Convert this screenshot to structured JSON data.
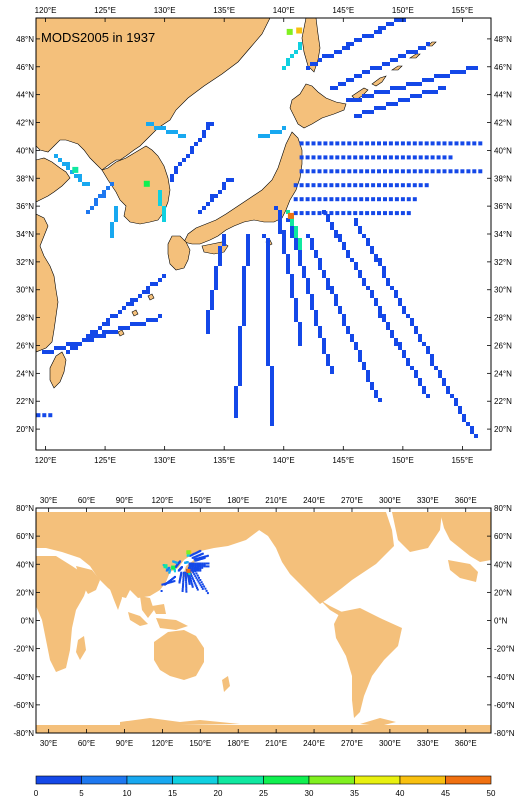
{
  "top_map": {
    "title": "MODS2005 in 1937",
    "lon_ticks": [
      120,
      125,
      130,
      135,
      140,
      145,
      150,
      155
    ],
    "lon_labels": [
      "120°E",
      "125°E",
      "130°E",
      "135°E",
      "140°E",
      "145°E",
      "150°E",
      "155°E"
    ],
    "lat_ticks": [
      20,
      22,
      24,
      26,
      28,
      30,
      32,
      34,
      36,
      38,
      40,
      42,
      44,
      46,
      48
    ],
    "lat_labels": [
      "20°N",
      "22°N",
      "24°N",
      "26°N",
      "28°N",
      "30°N",
      "32°N",
      "34°N",
      "36°N",
      "38°N",
      "40°N",
      "42°N",
      "44°N",
      "46°N",
      "48°N"
    ],
    "lon_range": [
      119.2,
      157.4
    ],
    "lat_range": [
      18.5,
      49.5
    ]
  },
  "bottom_map": {
    "lon_ticks": [
      30,
      60,
      90,
      120,
      150,
      180,
      210,
      240,
      270,
      300,
      330,
      360
    ],
    "lon_labels": [
      "30°E",
      "60°E",
      "90°E",
      "120°E",
      "150°E",
      "180°E",
      "210°E",
      "240°E",
      "270°E",
      "300°E",
      "330°E",
      "360°E"
    ],
    "lat_ticks": [
      -80,
      -60,
      -40,
      -20,
      0,
      20,
      40,
      60,
      80
    ],
    "lat_labels": [
      "-80°N",
      "-60°N",
      "-40°N",
      "-20°N",
      "0°N",
      "20°N",
      "40°N",
      "60°N",
      "80°N"
    ],
    "lon_range": [
      20,
      380
    ],
    "lat_range": [
      -80,
      80
    ]
  },
  "colorbar": {
    "ticks": [
      "0",
      "5",
      "10",
      "15",
      "20",
      "25",
      "30",
      "35",
      "40",
      "45",
      "50"
    ],
    "colors": [
      "#1448e8",
      "#1e78f0",
      "#18a8f0",
      "#10d0e0",
      "#10e8a0",
      "#10f050",
      "#80f020",
      "#e8f010",
      "#f8c010",
      "#f07010"
    ]
  },
  "colors": {
    "land": "#f4c07b",
    "obs_low": "#1448e8"
  },
  "chart_data": {
    "type": "heatmap",
    "title": "MODS2005 in 1937",
    "value_range": [
      0,
      50
    ],
    "observation_lines": [
      {
        "lat": 40.5,
        "lon_from": 141.5,
        "lon_to": 156.5,
        "level": 0
      },
      {
        "lat": 39.5,
        "lon_from": 141.5,
        "lon_to": 154.0,
        "level": 0
      },
      {
        "lat": 38.5,
        "lon_from": 141.5,
        "lon_to": 156.5,
        "level": 0
      },
      {
        "lat": 37.5,
        "lon_from": 141.0,
        "lon_to": 152.0,
        "level": 0
      },
      {
        "lat": 36.5,
        "lon_from": 141.0,
        "lon_to": 151.0,
        "level": 0
      },
      {
        "lat": 35.5,
        "lon_from": 141.0,
        "lon_to": 150.5,
        "level": 0
      },
      {
        "lat": 21.0,
        "lon_from": 119.4,
        "lon_to": 120.5,
        "level": 0
      }
    ],
    "observation_tracks": [
      {
        "from": [
          139.5,
          36.0
        ],
        "to": [
          141.5,
          26.0
        ],
        "level": 0
      },
      {
        "from": [
          140.5,
          35.0
        ],
        "to": [
          144.0,
          24.0
        ],
        "level": 0
      },
      {
        "from": [
          138.5,
          34.0
        ],
        "to": [
          139.0,
          20.5
        ],
        "level": 0
      },
      {
        "from": [
          137.0,
          34.0
        ],
        "to": [
          136.0,
          21.0
        ],
        "level": 0
      },
      {
        "from": [
          135.0,
          34.0
        ],
        "to": [
          133.5,
          27.0
        ],
        "level": 0
      },
      {
        "from": [
          142.0,
          34.0
        ],
        "to": [
          148.0,
          22.0
        ],
        "level": 0
      },
      {
        "from": [
          143.5,
          35.5
        ],
        "to": [
          152.0,
          22.5
        ],
        "level": 0
      },
      {
        "from": [
          146.0,
          35.0
        ],
        "to": [
          156.0,
          19.5
        ],
        "level": 0
      },
      {
        "from": [
          130.0,
          31.0
        ],
        "to": [
          122.0,
          25.5
        ],
        "level": 0
      },
      {
        "from": [
          129.5,
          28.0
        ],
        "to": [
          120.0,
          25.5
        ],
        "level": 0
      },
      {
        "from": [
          142.0,
          46.0
        ],
        "to": [
          150.0,
          49.5
        ],
        "level": 0
      },
      {
        "from": [
          144.0,
          44.5
        ],
        "to": [
          152.0,
          47.5
        ],
        "level": 0
      },
      {
        "from": [
          145.5,
          43.5
        ],
        "to": [
          156.0,
          46.0
        ],
        "level": 0
      },
      {
        "from": [
          146.0,
          42.5
        ],
        "to": [
          153.5,
          44.5
        ],
        "level": 0
      },
      {
        "from": [
          134.0,
          42.0
        ],
        "to": [
          130.5,
          38.0
        ],
        "level": 0
      },
      {
        "from": [
          135.5,
          38.0
        ],
        "to": [
          133.0,
          35.5
        ],
        "level": 0
      },
      {
        "from": [
          125.5,
          37.5
        ],
        "to": [
          123.5,
          35.5
        ],
        "level": 1
      },
      {
        "from": [
          121.0,
          39.5
        ],
        "to": [
          123.5,
          37.5
        ],
        "level": 2
      },
      {
        "from": [
          126.0,
          36.0
        ],
        "to": [
          125.5,
          34.0
        ],
        "level": 2
      },
      {
        "from": [
          129.5,
          37.0
        ],
        "to": [
          130.0,
          35.0
        ],
        "level": 3
      },
      {
        "from": [
          131.5,
          41.0
        ],
        "to": [
          128.5,
          42.0
        ],
        "level": 2
      },
      {
        "from": [
          138.0,
          41.0
        ],
        "to": [
          140.0,
          41.5
        ],
        "level": 2
      },
      {
        "from": [
          140.0,
          46.0
        ],
        "to": [
          141.5,
          47.5
        ],
        "level": 3
      },
      {
        "from": [
          140.5,
          35.5
        ],
        "to": [
          141.5,
          33.0
        ],
        "level": 4
      }
    ],
    "hotspots": [
      {
        "lon": 141.3,
        "lat": 48.6,
        "level": 8
      },
      {
        "lon": 140.5,
        "lat": 48.5,
        "level": 6
      },
      {
        "lon": 140.6,
        "lat": 35.3,
        "level": 9
      },
      {
        "lon": 128.5,
        "lat": 37.6,
        "level": 5
      },
      {
        "lon": 122.5,
        "lat": 38.6,
        "level": 4
      }
    ]
  }
}
